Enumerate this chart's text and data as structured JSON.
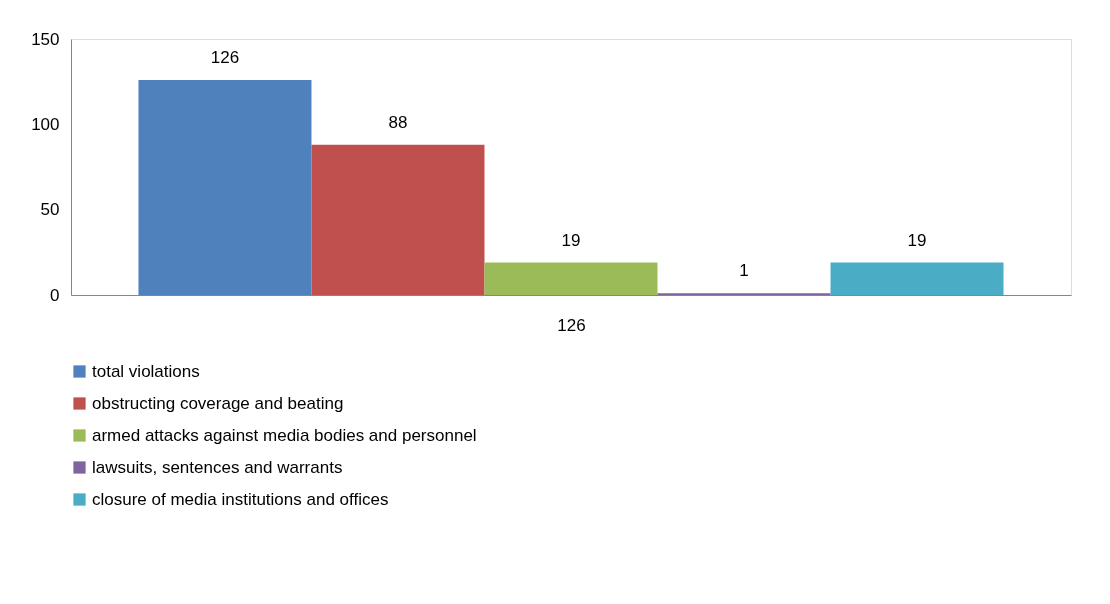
{
  "chart_data": {
    "type": "bar",
    "categories": [
      null,
      null,
      null,
      null,
      null
    ],
    "xlabel": "126",
    "series": [
      {
        "name": "total violations",
        "color": "#4f81bd",
        "values": [
          126,
          null,
          null,
          null,
          null
        ]
      },
      {
        "name": "obstructing coverage and beating",
        "color": "#c0504d",
        "values": [
          null,
          88,
          null,
          null,
          null
        ]
      },
      {
        "name": "armed attacks against media bodies and personnel",
        "color": "#9bbb59",
        "values": [
          null,
          null,
          19,
          null,
          null
        ]
      },
      {
        "name": "lawsuits, sentences and warrants",
        "color": "#8064a2",
        "values": [
          null,
          null,
          null,
          1,
          null
        ]
      },
      {
        "name": "closure of media institutions and offices",
        "color": "#4bacc6",
        "values": [
          null,
          null,
          null,
          null,
          19
        ]
      }
    ],
    "ylim": [
      0,
      150
    ],
    "yticks": [
      0,
      50,
      100,
      150
    ],
    "tick_labels": "y",
    "legend": "bottom",
    "data_labels": true
  }
}
